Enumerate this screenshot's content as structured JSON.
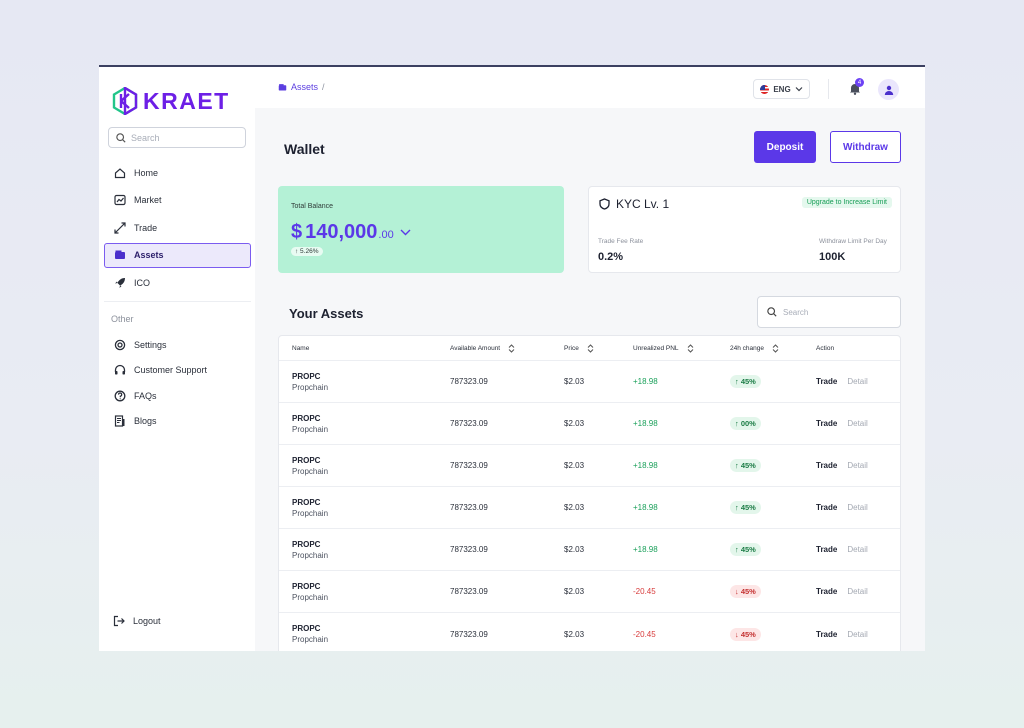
{
  "brand": {
    "name": "KRAET",
    "accent": "#5b38e8",
    "logo_color": "#6d1fe6"
  },
  "sidebar": {
    "search_placeholder": "Search",
    "items": [
      {
        "label": "Home",
        "icon": "home-icon"
      },
      {
        "label": "Market",
        "icon": "chart-icon"
      },
      {
        "label": "Trade",
        "icon": "trade-arrows-icon"
      },
      {
        "label": "Assets",
        "icon": "wallet-icon",
        "active": true
      },
      {
        "label": "ICO",
        "icon": "rocket-icon"
      }
    ],
    "other_label": "Other",
    "other_items": [
      {
        "label": "Settings",
        "icon": "settings-icon"
      },
      {
        "label": "Customer Support",
        "icon": "headset-icon"
      },
      {
        "label": "FAQs",
        "icon": "question-icon"
      },
      {
        "label": "Blogs",
        "icon": "blog-icon"
      }
    ],
    "logout_label": "Logout"
  },
  "topbar": {
    "breadcrumb": "Assets",
    "breadcrumb_sep": "/",
    "language": "ENG",
    "notification_count": "4"
  },
  "wallet": {
    "title": "Wallet",
    "deposit_label": "Deposit",
    "withdraw_label": "Withdraw",
    "total_label": "Total Balance",
    "currency": "$",
    "balance_whole": "140,000",
    "balance_cents": ".00",
    "change": "↑ 5.26%"
  },
  "kyc": {
    "title": "KYC Lv. 1",
    "upgrade_label": "Upgrade to Increase Limit",
    "fee_label": "Trade Fee Rate",
    "fee_value": "0.2%",
    "limit_label": "Withdraw Limit Per Day",
    "limit_value": "100K"
  },
  "assets": {
    "title": "Your Assets",
    "search_placeholder": "Search",
    "columns": {
      "name": "Name",
      "amount": "Available Amount",
      "price": "Price",
      "pnl": "Unrealized PNL",
      "change": "24h change",
      "action": "Action"
    },
    "trade_label": "Trade",
    "detail_label": "Detail",
    "rows": [
      {
        "symbol": "PROPC",
        "name": "Propchain",
        "amount": "787323.09",
        "price": "$2.03",
        "pnl": "+18.98",
        "pnl_dir": "pos",
        "change": "↑ 45%",
        "change_dir": "up"
      },
      {
        "symbol": "PROPC",
        "name": "Propchain",
        "amount": "787323.09",
        "price": "$2.03",
        "pnl": "+18.98",
        "pnl_dir": "pos",
        "change": "↑ 00%",
        "change_dir": "up"
      },
      {
        "symbol": "PROPC",
        "name": "Propchain",
        "amount": "787323.09",
        "price": "$2.03",
        "pnl": "+18.98",
        "pnl_dir": "pos",
        "change": "↑ 45%",
        "change_dir": "up"
      },
      {
        "symbol": "PROPC",
        "name": "Propchain",
        "amount": "787323.09",
        "price": "$2.03",
        "pnl": "+18.98",
        "pnl_dir": "pos",
        "change": "↑ 45%",
        "change_dir": "up"
      },
      {
        "symbol": "PROPC",
        "name": "Propchain",
        "amount": "787323.09",
        "price": "$2.03",
        "pnl": "+18.98",
        "pnl_dir": "pos",
        "change": "↑ 45%",
        "change_dir": "up"
      },
      {
        "symbol": "PROPC",
        "name": "Propchain",
        "amount": "787323.09",
        "price": "$2.03",
        "pnl": "-20.45",
        "pnl_dir": "neg",
        "change": "↓ 45%",
        "change_dir": "down"
      },
      {
        "symbol": "PROPC",
        "name": "Propchain",
        "amount": "787323.09",
        "price": "$2.03",
        "pnl": "-20.45",
        "pnl_dir": "neg",
        "change": "↓ 45%",
        "change_dir": "down"
      }
    ]
  }
}
